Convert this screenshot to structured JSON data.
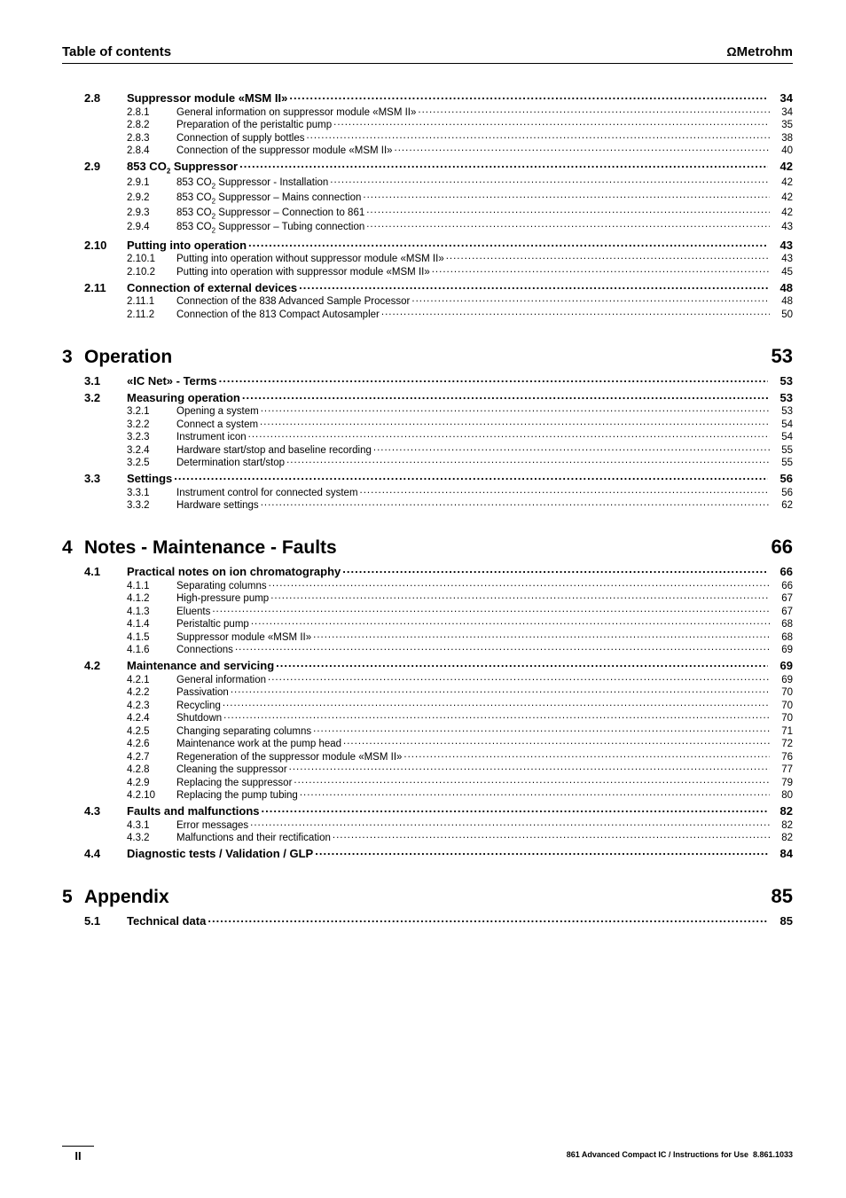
{
  "header": {
    "left": "Table of contents",
    "brand_symbol": "Ω",
    "brand_text": "Metrohm"
  },
  "footer": {
    "page": "II",
    "doc": "861 Advanced Compact IC / Instructions for Use  8.861.1033"
  },
  "toc": [
    {
      "lvl": "section",
      "num": "2.8",
      "txt": "Suppressor module «MSM II»",
      "pg": "34"
    },
    {
      "lvl": "sub",
      "num": "2.8.1",
      "txt": "General information on suppressor module «MSM II»",
      "pg": "34"
    },
    {
      "lvl": "sub",
      "num": "2.8.2",
      "txt": "Preparation of the peristaltic pump",
      "pg": "35"
    },
    {
      "lvl": "sub",
      "num": "2.8.3",
      "txt": "Connection of supply bottles",
      "pg": "38"
    },
    {
      "lvl": "sub",
      "num": "2.8.4",
      "txt": "Connection of the suppressor module «MSM II»",
      "pg": "40"
    },
    {
      "lvl": "section",
      "num": "2.9",
      "txt_html": "853 CO<span class='sub2'>2</span> Suppressor",
      "pg": "42"
    },
    {
      "lvl": "sub",
      "num": "2.9.1",
      "txt_html": "853 CO<span class='sub2'>2</span> Suppressor - Installation",
      "pg": "42"
    },
    {
      "lvl": "sub",
      "num": "2.9.2",
      "txt_html": "853 CO<span class='sub2'>2</span> Suppressor – Mains connection",
      "pg": "42"
    },
    {
      "lvl": "sub",
      "num": "2.9.3",
      "txt_html": "853 CO<span class='sub2'>2</span> Suppressor – Connection to 861",
      "pg": "42"
    },
    {
      "lvl": "sub",
      "num": "2.9.4",
      "txt_html": "853 CO<span class='sub2'>2</span> Suppressor – Tubing connection",
      "pg": "43"
    },
    {
      "lvl": "section",
      "num": "2.10",
      "txt": "Putting into operation",
      "pg": "43"
    },
    {
      "lvl": "sub",
      "num": "2.10.1",
      "txt": "Putting into operation without suppressor module «MSM II»",
      "pg": "43"
    },
    {
      "lvl": "sub",
      "num": "2.10.2",
      "txt": "Putting into operation with suppressor module «MSM II»",
      "pg": "45"
    },
    {
      "lvl": "section",
      "num": "2.11",
      "txt": "Connection of external devices",
      "pg": "48"
    },
    {
      "lvl": "sub",
      "num": "2.11.1",
      "txt": "Connection of the 838 Advanced Sample Processor",
      "pg": "48"
    },
    {
      "lvl": "sub",
      "num": "2.11.2",
      "txt": "Connection of the 813 Compact Autosampler",
      "pg": "50"
    },
    {
      "lvl": "chapter",
      "num": "3",
      "txt": "Operation",
      "pg": "53"
    },
    {
      "lvl": "section",
      "num": "3.1",
      "txt": "«IC Net» - Terms",
      "pg": "53"
    },
    {
      "lvl": "section",
      "num": "3.2",
      "txt": "Measuring operation",
      "pg": "53"
    },
    {
      "lvl": "sub",
      "num": "3.2.1",
      "txt": "Opening a system",
      "pg": "53"
    },
    {
      "lvl": "sub",
      "num": "3.2.2",
      "txt": "Connect a system",
      "pg": "54"
    },
    {
      "lvl": "sub",
      "num": "3.2.3",
      "txt": "Instrument icon",
      "pg": "54"
    },
    {
      "lvl": "sub",
      "num": "3.2.4",
      "txt": "Hardware start/stop and baseline recording",
      "pg": "55"
    },
    {
      "lvl": "sub",
      "num": "3.2.5",
      "txt": "Determination start/stop",
      "pg": "55"
    },
    {
      "lvl": "section",
      "num": "3.3",
      "txt": "Settings",
      "pg": "56"
    },
    {
      "lvl": "sub",
      "num": "3.3.1",
      "txt": "Instrument control for connected system",
      "pg": "56"
    },
    {
      "lvl": "sub",
      "num": "3.3.2",
      "txt": "Hardware settings",
      "pg": "62"
    },
    {
      "lvl": "chapter",
      "num": "4",
      "txt": "Notes - Maintenance - Faults",
      "pg": "66"
    },
    {
      "lvl": "section",
      "num": "4.1",
      "txt": "Practical notes on ion chromatography",
      "pg": "66"
    },
    {
      "lvl": "sub",
      "num": "4.1.1",
      "txt": "Separating columns",
      "pg": "66"
    },
    {
      "lvl": "sub",
      "num": "4.1.2",
      "txt": "High-pressure pump",
      "pg": "67"
    },
    {
      "lvl": "sub",
      "num": "4.1.3",
      "txt": "Eluents",
      "pg": "67"
    },
    {
      "lvl": "sub",
      "num": "4.1.4",
      "txt": "Peristaltic pump",
      "pg": "68"
    },
    {
      "lvl": "sub",
      "num": "4.1.5",
      "txt": "Suppressor module «MSM II»",
      "pg": "68"
    },
    {
      "lvl": "sub",
      "num": "4.1.6",
      "txt": "Connections",
      "pg": "69"
    },
    {
      "lvl": "section",
      "num": "4.2",
      "txt": "Maintenance and servicing",
      "pg": "69"
    },
    {
      "lvl": "sub",
      "num": "4.2.1",
      "txt": "General information",
      "pg": "69"
    },
    {
      "lvl": "sub",
      "num": "4.2.2",
      "txt": "Passivation",
      "pg": "70"
    },
    {
      "lvl": "sub",
      "num": "4.2.3",
      "txt": "Recycling",
      "pg": "70"
    },
    {
      "lvl": "sub",
      "num": "4.2.4",
      "txt": "Shutdown",
      "pg": "70"
    },
    {
      "lvl": "sub",
      "num": "4.2.5",
      "txt": "Changing separating columns",
      "pg": "71"
    },
    {
      "lvl": "sub",
      "num": "4.2.6",
      "txt": "Maintenance work at the pump head",
      "pg": "72"
    },
    {
      "lvl": "sub",
      "num": "4.2.7",
      "txt": "Regeneration of the suppressor module «MSM II»",
      "pg": "76"
    },
    {
      "lvl": "sub",
      "num": "4.2.8",
      "txt": "Cleaning the suppressor",
      "pg": "77"
    },
    {
      "lvl": "sub",
      "num": "4.2.9",
      "txt": "Replacing the suppressor",
      "pg": "79"
    },
    {
      "lvl": "sub",
      "num": "4.2.10",
      "txt": "Replacing the pump tubing",
      "pg": "80"
    },
    {
      "lvl": "section",
      "num": "4.3",
      "txt": "Faults and malfunctions",
      "pg": "82"
    },
    {
      "lvl": "sub",
      "num": "4.3.1",
      "txt": "Error messages",
      "pg": "82"
    },
    {
      "lvl": "sub",
      "num": "4.3.2",
      "txt": "Malfunctions and their rectification",
      "pg": "82"
    },
    {
      "lvl": "section",
      "num": "4.4",
      "txt": "Diagnostic tests / Validation / GLP",
      "pg": "84"
    },
    {
      "lvl": "chapter",
      "num": "5",
      "txt": "Appendix",
      "pg": "85"
    },
    {
      "lvl": "section",
      "num": "5.1",
      "txt": "Technical data",
      "pg": "85"
    }
  ]
}
